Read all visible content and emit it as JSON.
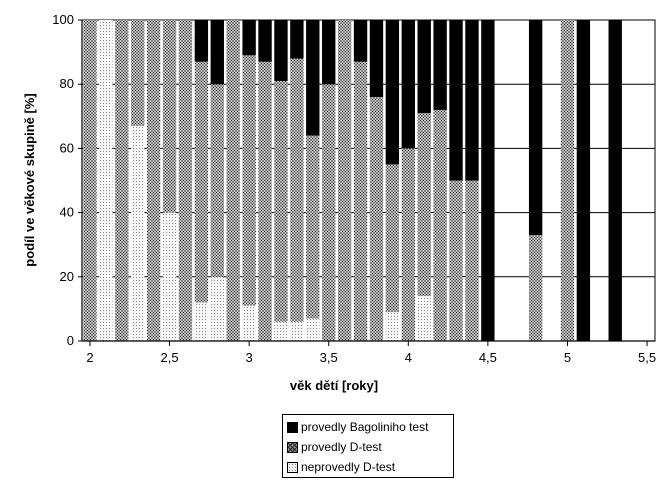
{
  "chart_data": {
    "type": "bar",
    "stacked": true,
    "xlabel": "věk dětí [roky]",
    "ylabel": "podíl ve věkové skupině [%]",
    "xlim": [
      1.95,
      5.55
    ],
    "ylim": [
      0,
      100
    ],
    "x_ticks": [
      "2",
      "2,5",
      "3",
      "3,5",
      "4",
      "4,5",
      "5",
      "5,5"
    ],
    "x_tick_values": [
      2,
      2.5,
      3,
      3.5,
      4,
      4.5,
      5,
      5.5
    ],
    "y_ticks": [
      "0",
      "20",
      "40",
      "60",
      "80",
      "100"
    ],
    "y_tick_values": [
      0,
      20,
      40,
      60,
      80,
      100
    ],
    "grid": true,
    "legend_position": "bottom",
    "x": [
      2.0,
      2.1,
      2.2,
      2.3,
      2.4,
      2.5,
      2.6,
      2.7,
      2.8,
      2.9,
      3.0,
      3.1,
      3.2,
      3.3,
      3.4,
      3.5,
      3.6,
      3.7,
      3.8,
      3.9,
      4.0,
      4.1,
      4.2,
      4.3,
      4.4,
      4.5,
      4.8,
      5.0,
      5.1,
      5.3
    ],
    "series": [
      {
        "name": "neprovedly D-test",
        "values": [
          0,
          100,
          0,
          67,
          0,
          40,
          0,
          12,
          20,
          0,
          11,
          0,
          6,
          6,
          7,
          0,
          0,
          0,
          0,
          9,
          0,
          14,
          0,
          0,
          0,
          0,
          0,
          0,
          0,
          0
        ]
      },
      {
        "name": "provedly D-test",
        "values": [
          100,
          0,
          100,
          33,
          100,
          60,
          100,
          75,
          60,
          100,
          78,
          87,
          75,
          82,
          57,
          80,
          100,
          87,
          76,
          46,
          60,
          57,
          72,
          50,
          50,
          0,
          33,
          100,
          0,
          0
        ]
      },
      {
        "name": "provedly Bagoliniho test",
        "values": [
          0,
          0,
          0,
          0,
          0,
          0,
          0,
          13,
          20,
          0,
          11,
          13,
          19,
          12,
          36,
          20,
          0,
          13,
          24,
          45,
          40,
          29,
          28,
          50,
          50,
          100,
          67,
          0,
          100,
          100
        ]
      }
    ]
  }
}
